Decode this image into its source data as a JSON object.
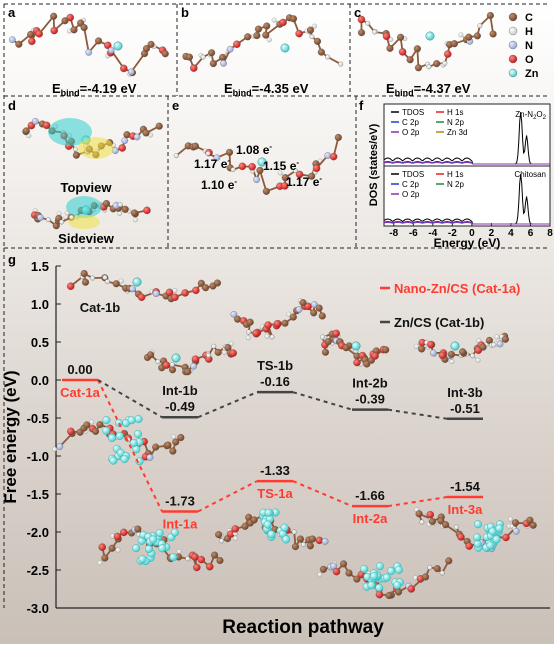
{
  "panels": {
    "a": {
      "letter": "a",
      "ebind_prefix": "E",
      "ebind_sub": "bind",
      "ebind_value": "=-4.19 eV"
    },
    "b": {
      "letter": "b",
      "ebind_prefix": "E",
      "ebind_sub": "bind",
      "ebind_value": "=-4.35 eV"
    },
    "c": {
      "letter": "c",
      "ebind_prefix": "E",
      "ebind_sub": "bind",
      "ebind_value": "=-4.37 eV"
    },
    "d": {
      "letter": "d",
      "topview": "Topview",
      "sideview": "Sideview"
    },
    "e": {
      "letter": "e",
      "charges": [
        "1.08 e",
        "1.17 e",
        "1.15 e",
        "1.10 e",
        "1.17 e"
      ]
    },
    "f": {
      "letter": "f",
      "ylabel": "DOS (states/eV)",
      "xlabel": "Energy (eV)",
      "xticks": [
        -8,
        -6,
        -4,
        -2,
        0,
        2,
        4,
        6,
        8
      ],
      "top": {
        "title": "Zn-N",
        "title_sub": "2",
        "title_mid": "O",
        "title_sub2": "2"
      },
      "bottom": {
        "title": "Chitosan"
      },
      "legend_top": [
        "TDOS",
        "H 1s",
        "C 2p",
        "N 2p",
        "O 2p",
        "Zn 3d"
      ],
      "legend_bottom": [
        "TDOS",
        "H 1s",
        "C 2p",
        "N 2p",
        "O 2p"
      ],
      "legend_colors": {
        "TDOS": "#000000",
        "H 1s": "#e0201e",
        "C 2p": "#1f3fbf",
        "N 2p": "#1e8a3a",
        "O 2p": "#8a2fb0",
        "Zn 3d": "#b08a10"
      }
    }
  },
  "atom_legend": [
    {
      "label": "C",
      "color": "#8b5a3c"
    },
    {
      "label": "H",
      "color": "#ffffff"
    },
    {
      "label": "N",
      "color": "#b8c4e8"
    },
    {
      "label": "O",
      "color": "#e02020"
    },
    {
      "label": "Zn",
      "color": "#7fe0e0"
    }
  ],
  "chart_data": {
    "type": "line",
    "panel_letter": "g",
    "xlabel": "Reaction pathway",
    "ylabel": "Free energy (eV)",
    "ylim": [
      -3.0,
      1.5
    ],
    "yticks": [
      1.5,
      1.0,
      0.5,
      0.0,
      -0.5,
      -1.0,
      -1.5,
      -2.0,
      -2.5,
      -3.0
    ],
    "ytick_labels": [
      "1.5",
      "1.0",
      "0.5",
      "0.0",
      "-0.5",
      "-1.0",
      "-1.5",
      "-2.0",
      "-2.5",
      "-3.0"
    ],
    "states": [
      "Cat",
      "Int-1",
      "TS-1",
      "Int-2",
      "Int-3"
    ],
    "series": [
      {
        "name": "Nano-Zn/CS (Cat-1a)",
        "color": "#ff3b30",
        "values": [
          0.0,
          -1.73,
          -1.33,
          -1.66,
          -1.54
        ],
        "value_labels": [
          "0.00",
          "-1.73",
          "-1.33",
          "-1.66",
          "-1.54"
        ],
        "state_labels": [
          "Cat-1a",
          "Int-1a",
          "TS-1a",
          "Int-2a",
          "Int-3a"
        ]
      },
      {
        "name": "Zn/CS (Cat-1b)",
        "color": "#444444",
        "values": [
          0.0,
          -0.49,
          -0.16,
          -0.39,
          -0.51
        ],
        "value_labels": [
          "0.00",
          "-0.49",
          "-0.16",
          "-0.39",
          "-0.51"
        ],
        "state_labels": [
          "Cat-1b",
          "Int-1b",
          "TS-1b",
          "Int-2b",
          "Int-3b"
        ]
      }
    ]
  }
}
